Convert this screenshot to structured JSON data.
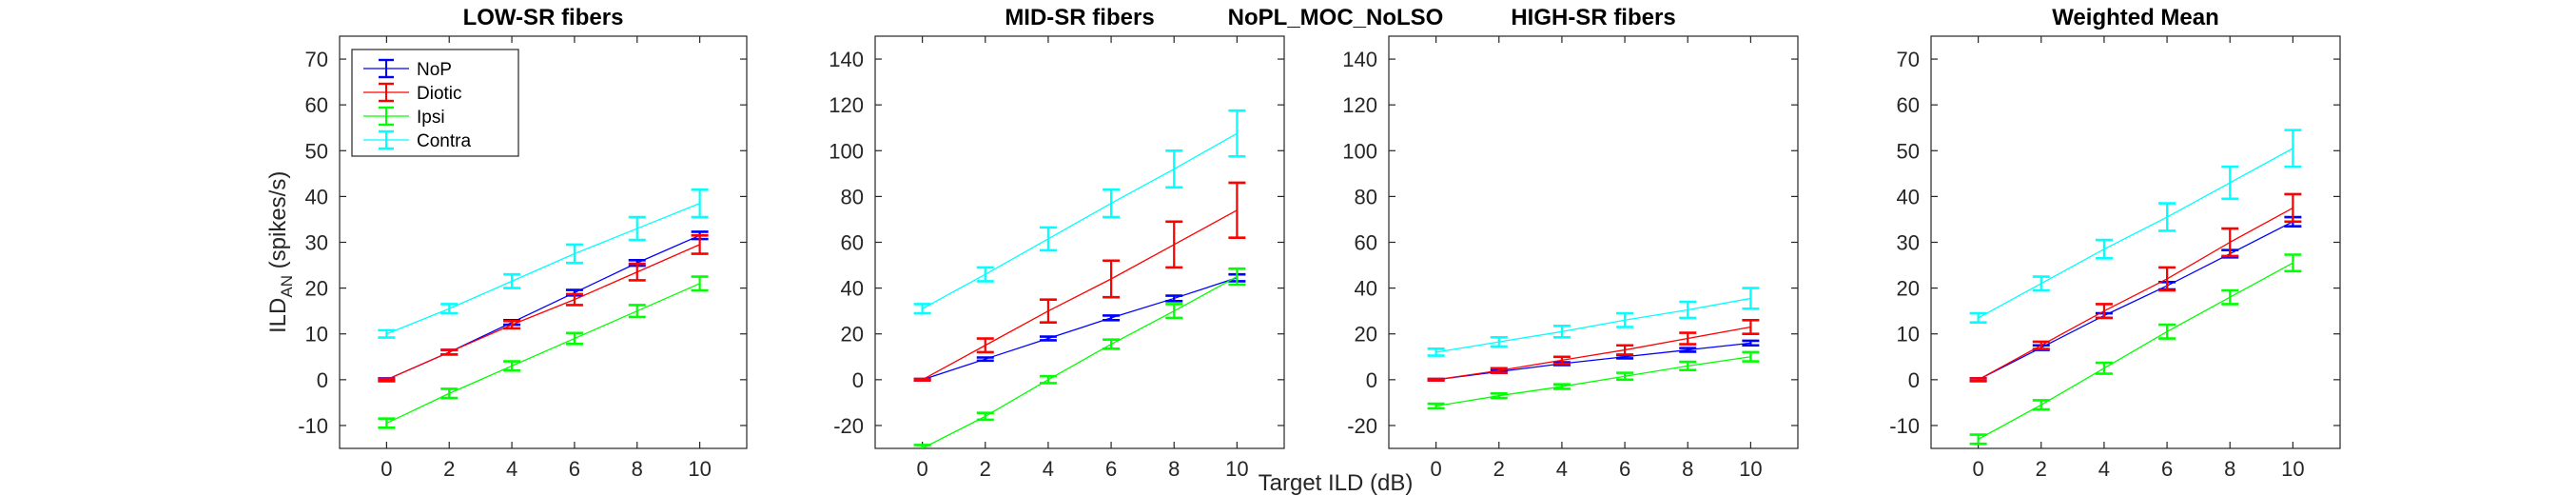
{
  "figure_title": "NoPL_MOC_NoLSO",
  "xlabel": "Target ILD (dB)",
  "ylabel_main": "ILD",
  "ylabel_sub": "AN",
  "ylabel_unit": " (spikes/s)",
  "colors": {
    "NoP": "#0000ff",
    "Diotic": "#ff0000",
    "Ipsi": "#00ff00",
    "Contra": "#00ffff",
    "axis": "#262626"
  },
  "legend": [
    "NoP",
    "Diotic",
    "Ipsi",
    "Contra"
  ],
  "chart_data": [
    {
      "type": "line",
      "title": "LOW-SR fibers",
      "x": [
        0,
        2,
        4,
        6,
        8,
        10
      ],
      "xlim": [
        -1.5,
        11.5
      ],
      "ylim": [
        -15,
        75
      ],
      "yticks": [
        -10,
        0,
        10,
        20,
        30,
        40,
        50,
        60,
        70
      ],
      "series": [
        {
          "name": "NoP",
          "values": [
            0,
            6,
            12.5,
            19,
            25.5,
            31.5
          ],
          "err": [
            0.3,
            0.5,
            0.5,
            0.6,
            0.6,
            0.8
          ]
        },
        {
          "name": "Diotic",
          "values": [
            0,
            6,
            12,
            17.5,
            23.5,
            29.5
          ],
          "err": [
            0.2,
            0.5,
            0.8,
            1.2,
            1.8,
            2
          ]
        },
        {
          "name": "Ipsi",
          "values": [
            -9.5,
            -3,
            3,
            9,
            15,
            21
          ],
          "err": [
            1,
            1,
            1,
            1.2,
            1.3,
            1.5
          ]
        },
        {
          "name": "Contra",
          "values": [
            10,
            15.5,
            21.5,
            27.5,
            33,
            38.5
          ],
          "err": [
            0.8,
            1,
            1.5,
            2,
            2.5,
            3
          ]
        }
      ]
    },
    {
      "type": "line",
      "title": "MID-SR fibers",
      "x": [
        0,
        2,
        4,
        6,
        8,
        10
      ],
      "xlim": [
        -1.5,
        11.5
      ],
      "ylim": [
        -30,
        150
      ],
      "yticks": [
        -20,
        0,
        20,
        40,
        60,
        80,
        100,
        120,
        140
      ],
      "series": [
        {
          "name": "NoP",
          "values": [
            0,
            9,
            18,
            27,
            35.5,
            44.5
          ],
          "err": [
            0.3,
            0.7,
            0.8,
            1,
            1.2,
            1.5
          ]
        },
        {
          "name": "Diotic",
          "values": [
            0,
            15,
            30,
            44,
            59,
            74
          ],
          "err": [
            0.3,
            3,
            5,
            8,
            10,
            12
          ]
        },
        {
          "name": "Ipsi",
          "values": [
            -30,
            -16,
            0,
            15.5,
            30,
            45
          ],
          "err": [
            1.5,
            1.5,
            1.5,
            2,
            3,
            3.5
          ]
        },
        {
          "name": "Contra",
          "values": [
            31,
            46,
            61.5,
            77,
            92,
            107.5
          ],
          "err": [
            2,
            3,
            5,
            6,
            8,
            10
          ]
        }
      ]
    },
    {
      "type": "line",
      "title": "HIGH-SR fibers",
      "x": [
        0,
        2,
        4,
        6,
        8,
        10
      ],
      "xlim": [
        -1.5,
        11.5
      ],
      "ylim": [
        -30,
        150
      ],
      "yticks": [
        -20,
        0,
        20,
        40,
        60,
        80,
        100,
        120,
        140
      ],
      "series": [
        {
          "name": "NoP",
          "values": [
            0,
            3.5,
            7,
            10,
            13,
            16
          ],
          "err": [
            0.3,
            0.5,
            0.6,
            0.7,
            0.8,
            1
          ]
        },
        {
          "name": "Diotic",
          "values": [
            0,
            4,
            8.5,
            13,
            18,
            23
          ],
          "err": [
            0.3,
            1,
            1.5,
            2,
            2.5,
            3
          ]
        },
        {
          "name": "Ipsi",
          "values": [
            -11.5,
            -7,
            -3,
            1.5,
            6,
            10
          ],
          "err": [
            1,
            1,
            1,
            1.5,
            1.8,
            2
          ]
        },
        {
          "name": "Contra",
          "values": [
            12,
            16.5,
            21,
            26,
            30.5,
            35.5
          ],
          "err": [
            1.5,
            2,
            2.5,
            3,
            3.5,
            4.5
          ]
        }
      ]
    },
    {
      "type": "line",
      "title": "Weighted Mean",
      "x": [
        0,
        2,
        4,
        6,
        8,
        10
      ],
      "xlim": [
        -1.5,
        11.5
      ],
      "ylim": [
        -15,
        75
      ],
      "yticks": [
        -10,
        0,
        10,
        20,
        30,
        40,
        50,
        60,
        70
      ],
      "series": [
        {
          "name": "NoP",
          "values": [
            0,
            7,
            14,
            20.5,
            27.5,
            34.5
          ],
          "err": [
            0.3,
            0.5,
            0.5,
            0.8,
            0.8,
            1
          ]
        },
        {
          "name": "Diotic",
          "values": [
            0,
            7.5,
            15,
            22,
            30,
            37.5
          ],
          "err": [
            0.3,
            0.8,
            1.5,
            2.5,
            3,
            3
          ]
        },
        {
          "name": "Ipsi",
          "values": [
            -13,
            -5.5,
            2.5,
            10.5,
            18,
            25.5
          ],
          "err": [
            1,
            1,
            1.2,
            1.5,
            1.5,
            1.8
          ]
        },
        {
          "name": "Contra",
          "values": [
            13.5,
            21,
            28.5,
            35.5,
            43,
            50.5
          ],
          "err": [
            1,
            1.5,
            2,
            3,
            3.5,
            4
          ]
        }
      ]
    }
  ]
}
